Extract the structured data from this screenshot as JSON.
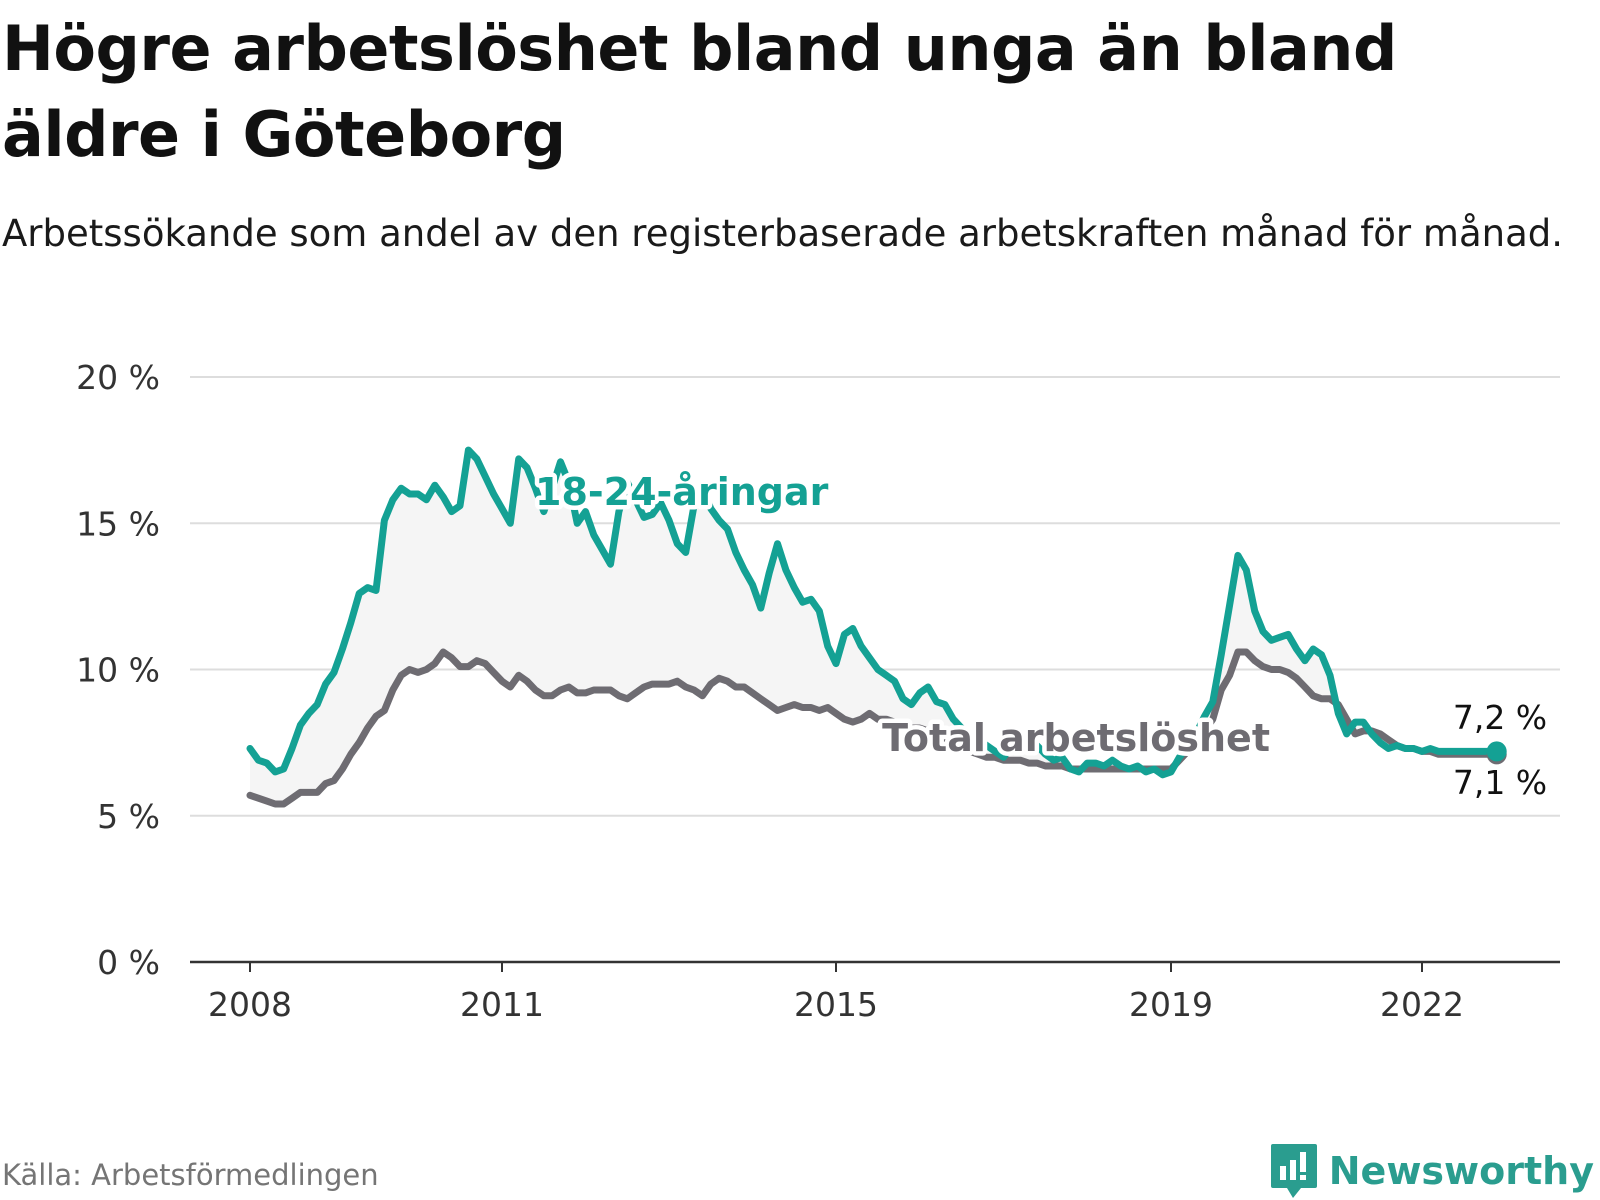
{
  "header": {
    "title": "Högre arbetslöshet bland unga än bland äldre i Göteborg",
    "subtitle": "Arbetssökande som andel av den registerbaserade arbetskraften månad för månad."
  },
  "footer": {
    "source": "Källa: Arbetsförmedlingen",
    "brand": "Newsworthy"
  },
  "colors": {
    "youth": "#14a194",
    "total": "#6e6c72",
    "band": "#f5f5f5",
    "grid": "#dddddd",
    "axis": "#333333",
    "brand": "#2a9d8f"
  },
  "chart_data": {
    "type": "line",
    "title": "Högre arbetslöshet bland unga än bland äldre i Göteborg",
    "subtitle": "Arbetssökande som andel av den registerbaserade arbetskraften månad för månad.",
    "xlabel": "",
    "ylabel": "",
    "xlim": [
      2008.0,
      2023.0
    ],
    "ylim": [
      0,
      20
    ],
    "x_ticks": [
      2008,
      2011,
      2015,
      2019,
      2022
    ],
    "x_tick_labels": [
      "2008",
      "2011",
      "2015",
      "2019",
      "2022"
    ],
    "y_ticks": [
      0,
      5,
      10,
      15,
      20
    ],
    "y_tick_labels": [
      "0 %",
      "5 %",
      "10 %",
      "15 %",
      "20 %"
    ],
    "grid": true,
    "shaded_band_between_series": true,
    "series": [
      {
        "name": "18-24-åringar",
        "color": "#14a194",
        "label_position": "inline-upper-left",
        "end_label": "7,2 %",
        "x": [
          2008.0,
          2008.1,
          2008.2,
          2008.3,
          2008.4,
          2008.5,
          2008.6,
          2008.7,
          2008.8,
          2008.9,
          2009.0,
          2009.1,
          2009.2,
          2009.3,
          2009.4,
          2009.5,
          2009.6,
          2009.7,
          2009.8,
          2009.9,
          2010.0,
          2010.1,
          2010.2,
          2010.3,
          2010.4,
          2010.5,
          2010.6,
          2010.7,
          2010.8,
          2010.9,
          2011.0,
          2011.1,
          2011.2,
          2011.3,
          2011.4,
          2011.5,
          2011.6,
          2011.7,
          2011.8,
          2011.9,
          2012.0,
          2012.1,
          2012.2,
          2012.3,
          2012.4,
          2012.5,
          2012.6,
          2012.7,
          2012.8,
          2012.9,
          2013.0,
          2013.1,
          2013.2,
          2013.3,
          2013.4,
          2013.5,
          2013.6,
          2013.7,
          2013.8,
          2013.9,
          2014.0,
          2014.1,
          2014.2,
          2014.3,
          2014.4,
          2014.5,
          2014.6,
          2014.7,
          2014.8,
          2014.9,
          2015.0,
          2015.1,
          2015.2,
          2015.3,
          2015.4,
          2015.5,
          2015.6,
          2015.7,
          2015.8,
          2015.9,
          2016.0,
          2016.1,
          2016.2,
          2016.3,
          2016.4,
          2016.5,
          2016.6,
          2016.7,
          2016.8,
          2016.9,
          2017.0,
          2017.1,
          2017.2,
          2017.3,
          2017.4,
          2017.5,
          2017.6,
          2017.7,
          2017.8,
          2017.9,
          2018.0,
          2018.1,
          2018.2,
          2018.3,
          2018.4,
          2018.5,
          2018.6,
          2018.7,
          2018.8,
          2018.9,
          2019.0,
          2019.1,
          2019.2,
          2019.3,
          2019.4,
          2019.5,
          2019.6,
          2019.7,
          2019.8,
          2019.9,
          2020.0,
          2020.1,
          2020.2,
          2020.3,
          2020.4,
          2020.5,
          2020.6,
          2020.7,
          2020.8,
          2020.9,
          2021.0,
          2021.1,
          2021.2,
          2021.3,
          2021.4,
          2021.5,
          2021.6,
          2021.7,
          2021.8,
          2021.9,
          2022.0,
          2022.1,
          2022.2,
          2022.3,
          2022.4,
          2022.5,
          2022.6,
          2022.7,
          2022.8,
          2022.9
        ],
        "values": [
          7.3,
          6.9,
          6.8,
          6.5,
          6.6,
          7.3,
          8.1,
          8.5,
          8.8,
          9.5,
          9.9,
          10.7,
          11.6,
          12.6,
          12.8,
          12.7,
          15.1,
          15.8,
          16.2,
          16.0,
          16.0,
          15.8,
          16.3,
          15.9,
          15.4,
          15.6,
          17.5,
          17.2,
          16.6,
          16.0,
          15.5,
          15.0,
          17.2,
          16.9,
          16.2,
          15.4,
          16.2,
          17.1,
          16.4,
          15.0,
          15.4,
          14.6,
          14.1,
          13.6,
          15.4,
          16.4,
          15.8,
          15.2,
          15.3,
          15.7,
          15.1,
          14.3,
          14.0,
          15.6,
          16.2,
          15.5,
          15.1,
          14.8,
          14.0,
          13.4,
          12.9,
          12.1,
          13.3,
          14.3,
          13.4,
          12.8,
          12.3,
          12.4,
          12.0,
          10.8,
          10.2,
          11.2,
          11.4,
          10.8,
          10.4,
          10.0,
          9.8,
          9.6,
          9.0,
          8.8,
          9.2,
          9.4,
          8.9,
          8.8,
          8.3,
          8.0,
          7.8,
          7.6,
          7.4,
          7.2,
          7.0,
          7.4,
          7.5,
          7.3,
          7.4,
          7.1,
          6.9,
          7.0,
          6.6,
          6.5,
          6.8,
          6.8,
          6.7,
          6.9,
          6.7,
          6.6,
          6.7,
          6.5,
          6.6,
          6.4,
          6.5,
          7.0,
          7.4,
          7.8,
          8.4,
          8.9,
          10.5,
          12.2,
          13.9,
          13.4,
          12.0,
          11.3,
          11.0,
          11.1,
          11.2,
          10.7,
          10.3,
          10.7,
          10.5,
          9.8,
          8.5,
          7.8,
          8.2,
          8.2,
          7.8,
          7.5,
          7.3,
          7.4,
          7.3,
          7.3,
          7.2,
          7.3,
          7.2,
          7.2,
          7.2,
          7.2,
          7.2,
          7.2,
          7.2,
          7.2
        ]
      },
      {
        "name": "Total arbetslöshet",
        "color": "#6e6c72",
        "label_position": "inline-lower-right",
        "end_label": "7,1 %",
        "x": [
          2008.0,
          2008.1,
          2008.2,
          2008.3,
          2008.4,
          2008.5,
          2008.6,
          2008.7,
          2008.8,
          2008.9,
          2009.0,
          2009.1,
          2009.2,
          2009.3,
          2009.4,
          2009.5,
          2009.6,
          2009.7,
          2009.8,
          2009.9,
          2010.0,
          2010.1,
          2010.2,
          2010.3,
          2010.4,
          2010.5,
          2010.6,
          2010.7,
          2010.8,
          2010.9,
          2011.0,
          2011.1,
          2011.2,
          2011.3,
          2011.4,
          2011.5,
          2011.6,
          2011.7,
          2011.8,
          2011.9,
          2012.0,
          2012.1,
          2012.2,
          2012.3,
          2012.4,
          2012.5,
          2012.6,
          2012.7,
          2012.8,
          2012.9,
          2013.0,
          2013.1,
          2013.2,
          2013.3,
          2013.4,
          2013.5,
          2013.6,
          2013.7,
          2013.8,
          2013.9,
          2014.0,
          2014.1,
          2014.2,
          2014.3,
          2014.4,
          2014.5,
          2014.6,
          2014.7,
          2014.8,
          2014.9,
          2015.0,
          2015.1,
          2015.2,
          2015.3,
          2015.4,
          2015.5,
          2015.6,
          2015.7,
          2015.8,
          2015.9,
          2016.0,
          2016.1,
          2016.2,
          2016.3,
          2016.4,
          2016.5,
          2016.6,
          2016.7,
          2016.8,
          2016.9,
          2017.0,
          2017.1,
          2017.2,
          2017.3,
          2017.4,
          2017.5,
          2017.6,
          2017.7,
          2017.8,
          2017.9,
          2018.0,
          2018.1,
          2018.2,
          2018.3,
          2018.4,
          2018.5,
          2018.6,
          2018.7,
          2018.8,
          2018.9,
          2019.0,
          2019.1,
          2019.2,
          2019.3,
          2019.4,
          2019.5,
          2019.6,
          2019.7,
          2019.8,
          2019.9,
          2020.0,
          2020.1,
          2020.2,
          2020.3,
          2020.4,
          2020.5,
          2020.6,
          2020.7,
          2020.8,
          2020.9,
          2021.0,
          2021.1,
          2021.2,
          2021.3,
          2021.4,
          2021.5,
          2021.6,
          2021.7,
          2021.8,
          2021.9,
          2022.0,
          2022.1,
          2022.2,
          2022.3,
          2022.4,
          2022.5,
          2022.6,
          2022.7,
          2022.8,
          2022.9
        ],
        "values": [
          5.7,
          5.6,
          5.5,
          5.4,
          5.4,
          5.6,
          5.8,
          5.8,
          5.8,
          6.1,
          6.2,
          6.6,
          7.1,
          7.5,
          8.0,
          8.4,
          8.6,
          9.3,
          9.8,
          10.0,
          9.9,
          10.0,
          10.2,
          10.6,
          10.4,
          10.1,
          10.1,
          10.3,
          10.2,
          9.9,
          9.6,
          9.4,
          9.8,
          9.6,
          9.3,
          9.1,
          9.1,
          9.3,
          9.4,
          9.2,
          9.2,
          9.3,
          9.3,
          9.3,
          9.1,
          9.0,
          9.2,
          9.4,
          9.5,
          9.5,
          9.5,
          9.6,
          9.4,
          9.3,
          9.1,
          9.5,
          9.7,
          9.6,
          9.4,
          9.4,
          9.2,
          9.0,
          8.8,
          8.6,
          8.7,
          8.8,
          8.7,
          8.7,
          8.6,
          8.7,
          8.5,
          8.3,
          8.2,
          8.3,
          8.5,
          8.3,
          8.3,
          8.2,
          8.1,
          8.0,
          8.0,
          7.9,
          7.7,
          7.6,
          7.4,
          7.3,
          7.2,
          7.1,
          7.0,
          7.0,
          6.9,
          6.9,
          6.9,
          6.8,
          6.8,
          6.7,
          6.7,
          6.7,
          6.6,
          6.6,
          6.6,
          6.6,
          6.6,
          6.6,
          6.6,
          6.6,
          6.6,
          6.6,
          6.6,
          6.6,
          6.6,
          6.9,
          7.2,
          7.5,
          7.9,
          8.3,
          9.3,
          9.8,
          10.6,
          10.6,
          10.3,
          10.1,
          10.0,
          10.0,
          9.9,
          9.7,
          9.4,
          9.1,
          9.0,
          9.0,
          8.8,
          8.3,
          7.8,
          7.9,
          7.9,
          7.8,
          7.6,
          7.4,
          7.3,
          7.3,
          7.2,
          7.2,
          7.1,
          7.1,
          7.1,
          7.1,
          7.1,
          7.1,
          7.1,
          7.1
        ]
      }
    ]
  }
}
